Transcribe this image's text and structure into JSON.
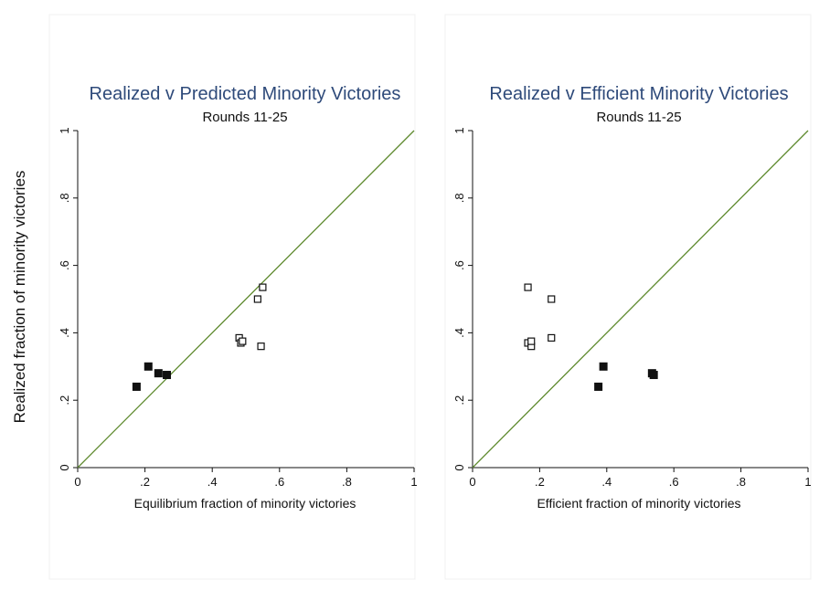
{
  "shared_ylabel": "Realized fraction of minority victories",
  "chart_data": [
    {
      "type": "scatter",
      "title": "Realized v Predicted Minority Victories",
      "subtitle": "Rounds 11-25",
      "xlabel": "Equilibrium fraction of minority victories",
      "xlim": [
        0,
        1
      ],
      "ylim": [
        0,
        1
      ],
      "xticks": [
        {
          "v": 0,
          "label": "0"
        },
        {
          "v": 0.2,
          "label": ".2"
        },
        {
          "v": 0.4,
          "label": ".4"
        },
        {
          "v": 0.6,
          "label": ".6"
        },
        {
          "v": 0.8,
          "label": ".8"
        },
        {
          "v": 1,
          "label": "1"
        }
      ],
      "yticks": [
        {
          "v": 0,
          "label": "0"
        },
        {
          "v": 0.2,
          "label": ".2"
        },
        {
          "v": 0.4,
          "label": ".4"
        },
        {
          "v": 0.6,
          "label": ".6"
        },
        {
          "v": 0.8,
          "label": ".8"
        },
        {
          "v": 1,
          "label": "1"
        }
      ],
      "reference_line": {
        "x": [
          0,
          1
        ],
        "y": [
          0,
          1
        ],
        "color": "#5e8a2e"
      },
      "series": [
        {
          "marker": "filled-square",
          "color": "#111111",
          "points": [
            [
              0.175,
              0.24
            ],
            [
              0.21,
              0.3
            ],
            [
              0.24,
              0.28
            ],
            [
              0.265,
              0.275
            ]
          ]
        },
        {
          "marker": "hollow-square",
          "color": "#111111",
          "points": [
            [
              0.48,
              0.385
            ],
            [
              0.485,
              0.37
            ],
            [
              0.49,
              0.375
            ],
            [
              0.535,
              0.5
            ],
            [
              0.545,
              0.36
            ],
            [
              0.55,
              0.535
            ]
          ]
        }
      ]
    },
    {
      "type": "scatter",
      "title": "Realized v Efficient Minority Victories",
      "subtitle": "Rounds 11-25",
      "xlabel": "Efficient fraction of minority victories",
      "xlim": [
        0,
        1
      ],
      "ylim": [
        0,
        1
      ],
      "xticks": [
        {
          "v": 0,
          "label": "0"
        },
        {
          "v": 0.2,
          "label": ".2"
        },
        {
          "v": 0.4,
          "label": ".4"
        },
        {
          "v": 0.6,
          "label": ".6"
        },
        {
          "v": 0.8,
          "label": ".8"
        },
        {
          "v": 1,
          "label": "1"
        }
      ],
      "yticks": [
        {
          "v": 0,
          "label": "0"
        },
        {
          "v": 0.2,
          "label": ".2"
        },
        {
          "v": 0.4,
          "label": ".4"
        },
        {
          "v": 0.6,
          "label": ".6"
        },
        {
          "v": 0.8,
          "label": ".8"
        },
        {
          "v": 1,
          "label": "1"
        }
      ],
      "reference_line": {
        "x": [
          0,
          1
        ],
        "y": [
          0,
          1
        ],
        "color": "#5e8a2e"
      },
      "series": [
        {
          "marker": "filled-square",
          "color": "#111111",
          "points": [
            [
              0.375,
              0.24
            ],
            [
              0.39,
              0.3
            ],
            [
              0.535,
              0.28
            ],
            [
              0.54,
              0.275
            ]
          ]
        },
        {
          "marker": "hollow-square",
          "color": "#111111",
          "points": [
            [
              0.165,
              0.535
            ],
            [
              0.165,
              0.37
            ],
            [
              0.175,
              0.36
            ],
            [
              0.175,
              0.375
            ],
            [
              0.235,
              0.5
            ],
            [
              0.235,
              0.385
            ]
          ]
        }
      ]
    }
  ]
}
